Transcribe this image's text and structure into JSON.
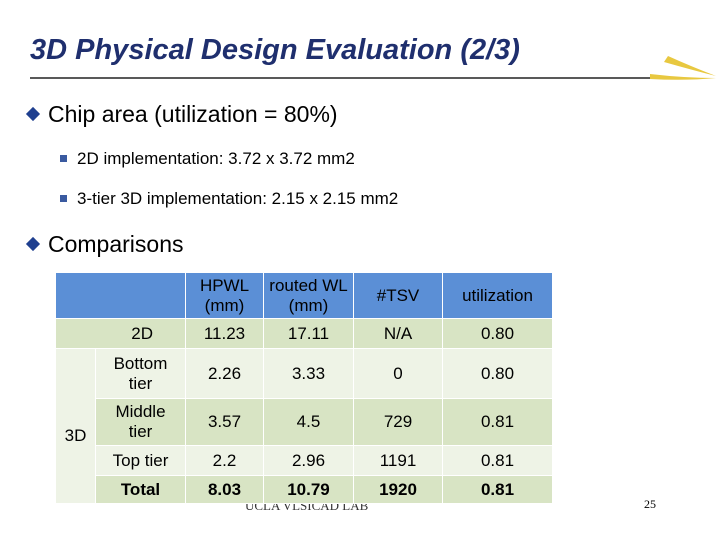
{
  "header": {
    "title": "3D Physical Design Evaluation (2/3)"
  },
  "bullets": [
    {
      "text": "Chip area (utilization = 80%)",
      "sub": [
        "2D implementation: 3.72 x 3.72 mm2",
        "3-tier 3D implementation: 2.15 x 2.15 mm2"
      ]
    },
    {
      "text": "Comparisons"
    }
  ],
  "table": {
    "columns": [
      "HPWL (mm)",
      "routed WL (mm)",
      "#TSV",
      "utilization"
    ],
    "group": "3D",
    "rows": [
      [
        "2D",
        "11.23",
        "17.11",
        "N/A",
        "0.80"
      ],
      [
        "Bottom tier",
        "2.26",
        "3.33",
        "0",
        "0.80"
      ],
      [
        "Middle tier",
        "3.57",
        "4.5",
        "729",
        "0.81"
      ],
      [
        "Top tier",
        "2.2",
        "2.96",
        "1191",
        "0.81"
      ],
      [
        "Total",
        "8.03",
        "10.79",
        "1920",
        "0.81"
      ]
    ]
  },
  "footer": {
    "lab": "UCLA VLSICAD LAB",
    "page": "25"
  }
}
